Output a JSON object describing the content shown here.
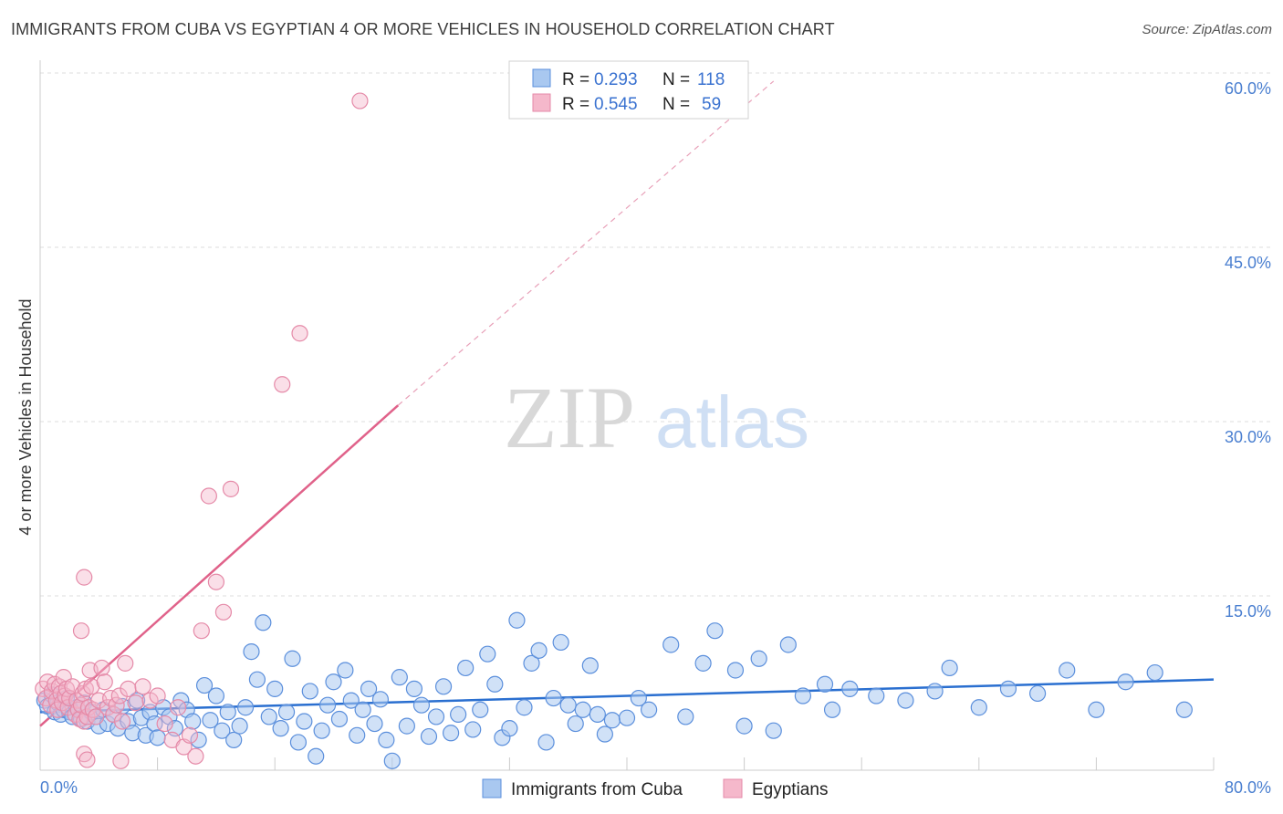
{
  "title": "IMMIGRANTS FROM CUBA VS EGYPTIAN 4 OR MORE VEHICLES IN HOUSEHOLD CORRELATION CHART",
  "source": "Source: ZipAtlas.com",
  "watermark": {
    "zip": "ZIP",
    "atlas": "atlas"
  },
  "colors": {
    "blue_fill": "#a9c8f0",
    "blue_stroke": "#5b8fdc",
    "blue_line": "#2a6fd0",
    "pink_fill": "#f5b8cb",
    "pink_stroke": "#e58aa8",
    "pink_line": "#e0628a",
    "grid": "#dcdcdc",
    "tick_text": "#4a7fd0"
  },
  "legend": {
    "rows": [
      {
        "r_label": "R =",
        "r_value": "0.293",
        "n_label": "N =",
        "n_value": "118",
        "color": "blue"
      },
      {
        "r_label": "R =",
        "r_value": "0.545",
        "n_label": "N =",
        "n_value": "59",
        "color": "pink"
      }
    ]
  },
  "chart_data": {
    "type": "scatter",
    "title": "IMMIGRANTS FROM CUBA VS EGYPTIAN 4 OR MORE VEHICLES IN HOUSEHOLD CORRELATION CHART",
    "xlabel": "",
    "ylabel": "4 or more Vehicles in Household",
    "xlim": [
      0,
      80
    ],
    "ylim": [
      0,
      60
    ],
    "y_ticks": [
      15,
      30,
      45,
      60
    ],
    "y_tick_labels": [
      "15.0%",
      "30.0%",
      "45.0%",
      "60.0%"
    ],
    "x_tick_labels": [
      "0.0%",
      "80.0%"
    ],
    "x_minor_ticks": [
      8,
      16,
      24,
      32,
      40,
      48,
      56,
      64,
      72,
      80
    ],
    "grid": true,
    "legend_position": "top-center",
    "series": [
      {
        "name": "Immigrants from Cuba",
        "color": "blue",
        "R": 0.293,
        "N": 118,
        "trend": {
          "x0": 0,
          "y0": 5.0,
          "x1": 80,
          "y1": 7.8
        },
        "points": [
          [
            0.3,
            6.0
          ],
          [
            0.5,
            5.5
          ],
          [
            0.8,
            6.5
          ],
          [
            1.0,
            5.0
          ],
          [
            1.2,
            5.8
          ],
          [
            1.4,
            4.8
          ],
          [
            1.6,
            5.2
          ],
          [
            1.8,
            6.2
          ],
          [
            2.0,
            5.0
          ],
          [
            2.2,
            4.6
          ],
          [
            2.5,
            5.4
          ],
          [
            2.8,
            4.4
          ],
          [
            3.0,
            5.8
          ],
          [
            3.2,
            4.2
          ],
          [
            3.5,
            5.0
          ],
          [
            3.8,
            4.6
          ],
          [
            4.0,
            3.8
          ],
          [
            4.3,
            5.2
          ],
          [
            4.6,
            4.0
          ],
          [
            5.0,
            4.8
          ],
          [
            5.3,
            3.6
          ],
          [
            5.6,
            5.5
          ],
          [
            6.0,
            4.2
          ],
          [
            6.3,
            3.2
          ],
          [
            6.6,
            6.0
          ],
          [
            6.9,
            4.5
          ],
          [
            7.2,
            3.0
          ],
          [
            7.5,
            5.0
          ],
          [
            7.8,
            4.0
          ],
          [
            8.0,
            2.8
          ],
          [
            8.4,
            5.4
          ],
          [
            8.8,
            4.6
          ],
          [
            9.2,
            3.6
          ],
          [
            9.6,
            6.0
          ],
          [
            10.0,
            5.2
          ],
          [
            10.4,
            4.2
          ],
          [
            10.8,
            2.6
          ],
          [
            11.2,
            7.3
          ],
          [
            11.6,
            4.3
          ],
          [
            12.0,
            6.4
          ],
          [
            12.4,
            3.4
          ],
          [
            12.8,
            5.0
          ],
          [
            13.2,
            2.6
          ],
          [
            13.6,
            3.8
          ],
          [
            14.0,
            5.4
          ],
          [
            14.4,
            10.2
          ],
          [
            14.8,
            7.8
          ],
          [
            15.2,
            12.7
          ],
          [
            15.6,
            4.6
          ],
          [
            16.0,
            7.0
          ],
          [
            16.4,
            3.6
          ],
          [
            16.8,
            5.0
          ],
          [
            17.2,
            9.6
          ],
          [
            17.6,
            2.4
          ],
          [
            18.0,
            4.2
          ],
          [
            18.4,
            6.8
          ],
          [
            18.8,
            1.2
          ],
          [
            19.2,
            3.4
          ],
          [
            19.6,
            5.6
          ],
          [
            20.0,
            7.6
          ],
          [
            20.4,
            4.4
          ],
          [
            20.8,
            8.6
          ],
          [
            21.2,
            6.0
          ],
          [
            21.6,
            3.0
          ],
          [
            22.0,
            5.2
          ],
          [
            22.4,
            7.0
          ],
          [
            22.8,
            4.0
          ],
          [
            23.2,
            6.1
          ],
          [
            23.6,
            2.6
          ],
          [
            24.0,
            0.8
          ],
          [
            24.5,
            8.0
          ],
          [
            25.0,
            3.8
          ],
          [
            25.5,
            7.0
          ],
          [
            26.0,
            5.6
          ],
          [
            26.5,
            2.9
          ],
          [
            27.0,
            4.6
          ],
          [
            27.5,
            7.2
          ],
          [
            28.0,
            3.2
          ],
          [
            28.5,
            4.8
          ],
          [
            29.0,
            8.8
          ],
          [
            29.5,
            3.5
          ],
          [
            30.0,
            5.2
          ],
          [
            30.5,
            10.0
          ],
          [
            31.0,
            7.4
          ],
          [
            31.5,
            2.8
          ],
          [
            32.0,
            3.6
          ],
          [
            32.5,
            12.9
          ],
          [
            33.0,
            5.4
          ],
          [
            33.5,
            9.2
          ],
          [
            34.0,
            10.3
          ],
          [
            34.5,
            2.4
          ],
          [
            35.0,
            6.2
          ],
          [
            35.5,
            11.0
          ],
          [
            36.0,
            5.6
          ],
          [
            36.5,
            4.0
          ],
          [
            37.0,
            5.2
          ],
          [
            37.5,
            9.0
          ],
          [
            38.0,
            4.8
          ],
          [
            38.5,
            3.1
          ],
          [
            39.0,
            4.3
          ],
          [
            40.0,
            4.5
          ],
          [
            40.8,
            6.2
          ],
          [
            41.5,
            5.2
          ],
          [
            43.0,
            10.8
          ],
          [
            44.0,
            4.6
          ],
          [
            45.2,
            9.2
          ],
          [
            46.0,
            12.0
          ],
          [
            47.4,
            8.6
          ],
          [
            48.0,
            3.8
          ],
          [
            49.0,
            9.6
          ],
          [
            50.0,
            3.4
          ],
          [
            51.0,
            10.8
          ],
          [
            52.0,
            6.4
          ],
          [
            53.5,
            7.4
          ],
          [
            54.0,
            5.2
          ],
          [
            55.2,
            7.0
          ],
          [
            57.0,
            6.4
          ],
          [
            59.0,
            6.0
          ],
          [
            61.0,
            6.8
          ],
          [
            62.0,
            8.8
          ],
          [
            64.0,
            5.4
          ],
          [
            66.0,
            7.0
          ],
          [
            68.0,
            6.6
          ],
          [
            70.0,
            8.6
          ],
          [
            72.0,
            5.2
          ],
          [
            74.0,
            7.6
          ],
          [
            76.0,
            8.4
          ],
          [
            78.0,
            5.2
          ]
        ]
      },
      {
        "name": "Egyptians",
        "color": "pink",
        "R": 0.545,
        "N": 59,
        "trend": {
          "x0": 0,
          "y0": 3.8,
          "x1": 24.4,
          "y1": 31.4
        },
        "trend_extension": {
          "x0": 24.4,
          "y0": 31.4,
          "x1": 50,
          "y1": 59.3
        },
        "points": [
          [
            0.2,
            7.0
          ],
          [
            0.4,
            6.2
          ],
          [
            0.5,
            7.6
          ],
          [
            0.7,
            5.6
          ],
          [
            0.8,
            6.8
          ],
          [
            1.0,
            7.4
          ],
          [
            1.1,
            6.0
          ],
          [
            1.2,
            5.2
          ],
          [
            1.3,
            7.2
          ],
          [
            1.4,
            6.6
          ],
          [
            1.5,
            5.8
          ],
          [
            1.6,
            8.0
          ],
          [
            1.7,
            6.4
          ],
          [
            1.8,
            7.0
          ],
          [
            1.9,
            5.4
          ],
          [
            2.0,
            6.2
          ],
          [
            2.2,
            7.2
          ],
          [
            2.4,
            4.8
          ],
          [
            2.5,
            6.0
          ],
          [
            2.6,
            5.2
          ],
          [
            2.7,
            4.4
          ],
          [
            2.8,
            5.6
          ],
          [
            2.9,
            6.6
          ],
          [
            3.0,
            4.2
          ],
          [
            3.1,
            7.0
          ],
          [
            3.2,
            4.6
          ],
          [
            3.3,
            5.4
          ],
          [
            3.4,
            8.6
          ],
          [
            3.5,
            7.2
          ],
          [
            3.6,
            5.2
          ],
          [
            3.8,
            4.6
          ],
          [
            4.0,
            6.0
          ],
          [
            4.2,
            8.8
          ],
          [
            4.4,
            7.6
          ],
          [
            4.6,
            5.4
          ],
          [
            4.8,
            6.2
          ],
          [
            5.0,
            4.8
          ],
          [
            5.2,
            5.6
          ],
          [
            5.4,
            6.4
          ],
          [
            5.6,
            4.2
          ],
          [
            5.8,
            9.2
          ],
          [
            6.0,
            7.0
          ],
          [
            6.5,
            5.8
          ],
          [
            7.0,
            7.2
          ],
          [
            7.5,
            6.0
          ],
          [
            8.0,
            6.4
          ],
          [
            8.5,
            4.0
          ],
          [
            9.0,
            2.6
          ],
          [
            9.4,
            5.4
          ],
          [
            9.8,
            2.0
          ],
          [
            10.2,
            3.0
          ],
          [
            10.6,
            1.2
          ],
          [
            11.0,
            12.0
          ],
          [
            11.5,
            23.6
          ],
          [
            12.0,
            16.2
          ],
          [
            12.5,
            13.6
          ],
          [
            13.0,
            24.2
          ],
          [
            16.5,
            33.2
          ],
          [
            17.7,
            37.6
          ]
        ]
      }
    ],
    "extra_points_pink": [
      [
        3.0,
        1.4
      ],
      [
        3.2,
        0.9
      ],
      [
        2.8,
        12.0
      ],
      [
        3.0,
        16.6
      ],
      [
        5.5,
        0.8
      ],
      [
        21.8,
        57.6
      ]
    ]
  },
  "bottom_legend": [
    {
      "label": "Immigrants from Cuba",
      "color": "blue"
    },
    {
      "label": "Egyptians",
      "color": "pink"
    }
  ]
}
